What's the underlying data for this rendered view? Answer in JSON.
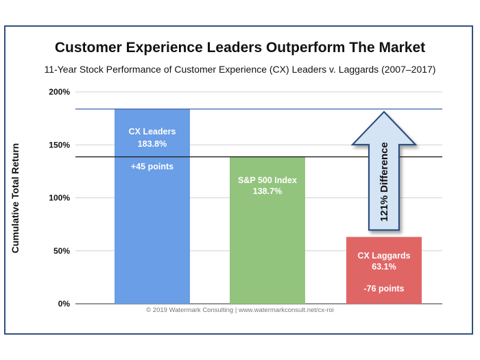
{
  "chart_data": {
    "type": "bar",
    "title": "Customer Experience Leaders Outperform The Market",
    "subtitle": "11-Year Stock Performance of Customer Experience (CX) Leaders v. Laggards (2007–2017)",
    "ylabel": "Cumulative Total Return",
    "xlabel": "",
    "ylim": [
      0,
      200
    ],
    "yticks": [
      "0%",
      "50%",
      "100%",
      "150%",
      "200%"
    ],
    "ytick_values": [
      0,
      50,
      100,
      150,
      200
    ],
    "grid": true,
    "categories": [
      "CX Leaders",
      "S&P 500 Index",
      "CX Laggards"
    ],
    "values": [
      183.8,
      138.7,
      63.1
    ],
    "bar_colors": [
      "#6a9ee6",
      "#93c47d",
      "#e06666"
    ],
    "bar_labels": [
      {
        "name": "CX Leaders",
        "value": "183.8%",
        "delta": "+45 points"
      },
      {
        "name": "S&P 500 Index",
        "value": "138.7%",
        "delta": ""
      },
      {
        "name": "CX Laggards",
        "value": "63.1%",
        "delta": "-76 points"
      }
    ],
    "reference_lines": [
      183.8,
      138.7
    ],
    "reference_line_colors": [
      "#3b5ea8",
      "#222222"
    ],
    "annotation": {
      "text": "121% Difference",
      "from": 63.1,
      "to": 183.8,
      "fill_color": "#d4e4f4",
      "stroke_color": "#2f4f7f"
    },
    "credit": "© 2019 Watermark Consulting | www.watermarkconsult.net/cx-roi"
  },
  "colors": {
    "frame": "#2f4f7f",
    "grid": "#d0d0d0",
    "axis": "#555555"
  }
}
